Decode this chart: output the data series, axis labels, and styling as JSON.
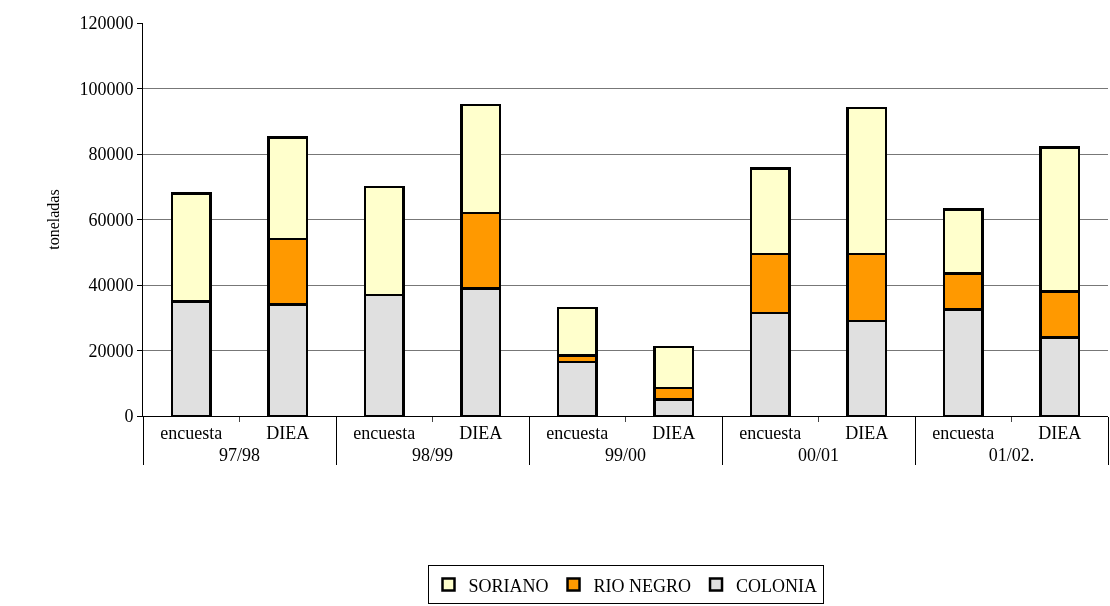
{
  "chart_data": {
    "type": "bar",
    "stacked": true,
    "ylabel": "toneladas",
    "categories": [
      "encuesta",
      "DIEA",
      "encuesta",
      "DIEA",
      "encuesta",
      "DIEA",
      "encuesta",
      "DIEA",
      "encuesta",
      "DIEA"
    ],
    "annotations": [
      "97/98",
      "98/99",
      "99/00",
      "00/01",
      "01/02."
    ],
    "series": [
      {
        "name": "COLONIA",
        "color": "#e0e0e0",
        "values": [
          35000,
          34000,
          37000,
          39000,
          16500,
          5000,
          31500,
          29000,
          32500,
          24000
        ]
      },
      {
        "name": "RIO NEGRO",
        "color": "#ff9900",
        "values": [
          0,
          20000,
          0,
          23000,
          2000,
          3500,
          18000,
          20500,
          11000,
          14000
        ]
      },
      {
        "name": "SORIANO",
        "color": "#ffffcc",
        "values": [
          33000,
          31000,
          33000,
          33000,
          14500,
          12500,
          26000,
          44500,
          19500,
          44000
        ]
      }
    ],
    "ylim": [
      0,
      120000
    ],
    "yticks": [
      0,
      20000,
      40000,
      60000,
      80000,
      100000,
      120000
    ],
    "grid": "y",
    "legend": "bottom"
  }
}
